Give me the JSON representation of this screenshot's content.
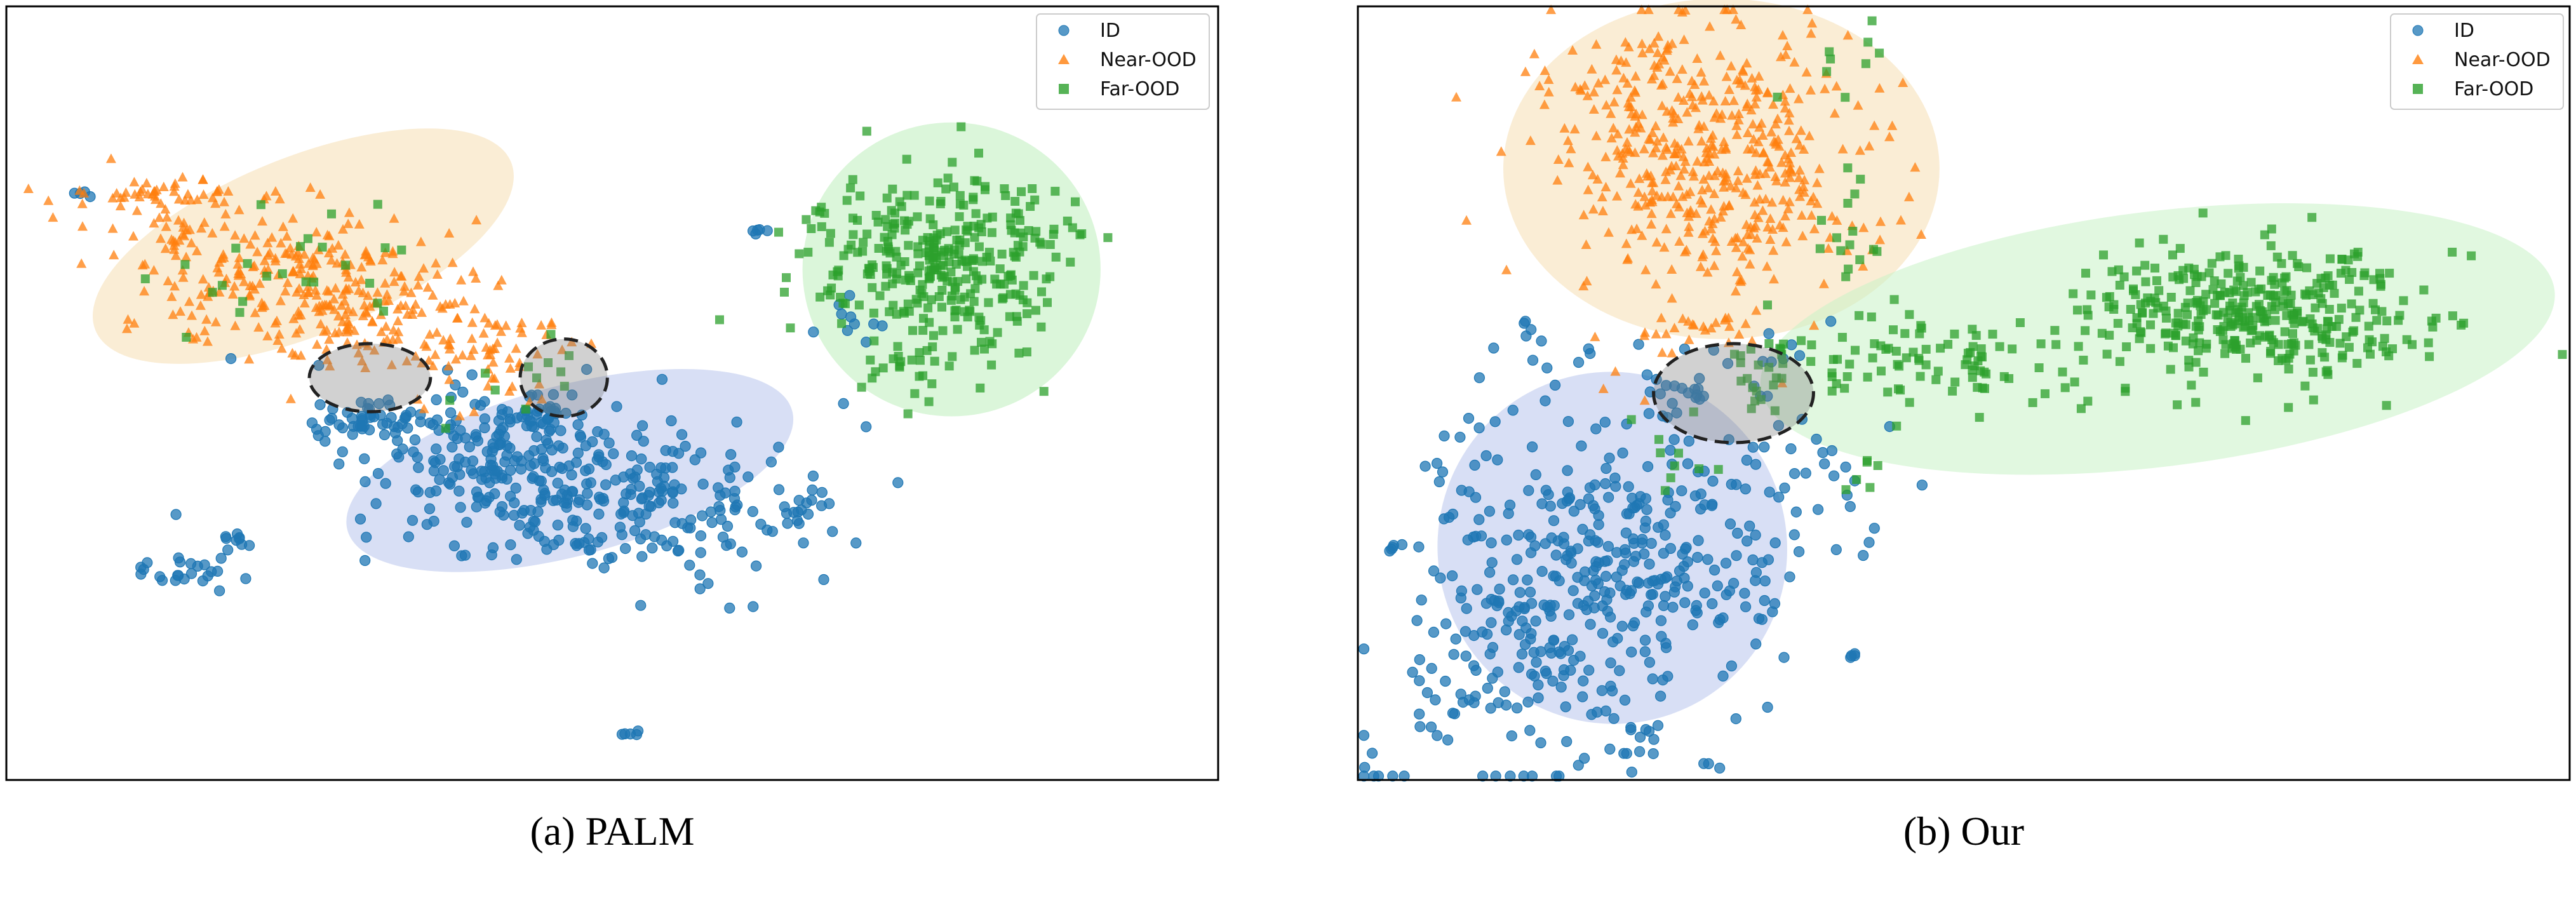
{
  "chart_data": [
    {
      "type": "scatter",
      "title": "",
      "caption": "(a) PALM",
      "xlabel": "",
      "ylabel": "",
      "axes_ticks": "hidden",
      "grid": false,
      "legend_position": "top-right",
      "series": [
        {
          "name": "ID",
          "marker": "circle",
          "color": "#1f77b4",
          "clusters": [
            {
              "center": [
                0.46,
                0.38
              ],
              "spread": [
                0.09,
                0.05
              ],
              "angle": -18,
              "n": 380
            },
            {
              "center": [
                0.3,
                0.47
              ],
              "spread": [
                0.028,
                0.012
              ],
              "angle": 0,
              "n": 45
            },
            {
              "center": [
                0.44,
                0.47
              ],
              "spread": [
                0.022,
                0.014
              ],
              "angle": 0,
              "n": 40
            },
            {
              "center": [
                0.15,
                0.28
              ],
              "spread": [
                0.025,
                0.02
              ],
              "angle": 0,
              "n": 25
            },
            {
              "center": [
                0.66,
                0.35
              ],
              "spread": [
                0.01,
                0.01
              ],
              "angle": 0,
              "n": 10
            },
            {
              "center": [
                0.19,
                0.31
              ],
              "spread": [
                0.006,
                0.006
              ],
              "angle": 0,
              "n": 8
            },
            {
              "center": [
                0.515,
                0.06
              ],
              "spread": [
                0.005,
                0.005
              ],
              "angle": 0,
              "n": 5
            },
            {
              "center": [
                0.06,
                0.76
              ],
              "spread": [
                0.004,
                0.003
              ],
              "angle": 0,
              "n": 4
            },
            {
              "center": [
                0.62,
                0.71
              ],
              "spread": [
                0.006,
                0.005
              ],
              "angle": 0,
              "n": 5
            },
            {
              "center": [
                0.7,
                0.59
              ],
              "spread": [
                0.02,
                0.03
              ],
              "angle": 0,
              "n": 10
            }
          ]
        },
        {
          "name": "Near-OOD",
          "marker": "triangle",
          "color": "#ff7f0e",
          "clusters": [
            {
              "center": [
                0.25,
                0.64
              ],
              "spread": [
                0.09,
                0.045
              ],
              "angle": -25,
              "n": 360
            },
            {
              "center": [
                0.13,
                0.76
              ],
              "spread": [
                0.05,
                0.008
              ],
              "angle": -3,
              "n": 45
            },
            {
              "center": [
                0.4,
                0.55
              ],
              "spread": [
                0.03,
                0.04
              ],
              "angle": 0,
              "n": 40
            }
          ]
        },
        {
          "name": "Far-OOD",
          "marker": "square",
          "color": "#2ca02c",
          "clusters": [
            {
              "center": [
                0.77,
                0.67
              ],
              "spread": [
                0.055,
                0.06
              ],
              "angle": 0,
              "n": 340
            },
            {
              "center": [
                0.74,
                0.54
              ],
              "spread": [
                0.02,
                0.02
              ],
              "angle": 0,
              "n": 20
            },
            {
              "center": [
                0.25,
                0.66
              ],
              "spread": [
                0.08,
                0.06
              ],
              "angle": 0,
              "n": 25
            },
            {
              "center": [
                0.43,
                0.52
              ],
              "spread": [
                0.03,
                0.03
              ],
              "angle": 0,
              "n": 12
            }
          ]
        }
      ],
      "regions": [
        {
          "series": "Near-OOD",
          "color": "#f5deb3",
          "center": [
            0.245,
            0.69
          ],
          "radii": [
            0.185,
            0.115
          ],
          "angle": -22
        },
        {
          "series": "ID",
          "color": "#b8c4ec",
          "center": [
            0.465,
            0.4
          ],
          "radii": [
            0.19,
            0.11
          ],
          "angle": -15
        },
        {
          "series": "Far-OOD",
          "color": "#bdeebc",
          "center": [
            0.78,
            0.66
          ],
          "radii": [
            0.123,
            0.19
          ],
          "angle": 0
        }
      ],
      "overlap_regions": [
        {
          "center": [
            0.3,
            0.52
          ],
          "radii": [
            0.05,
            0.044
          ]
        },
        {
          "center": [
            0.46,
            0.52
          ],
          "radii": [
            0.036,
            0.05
          ]
        }
      ],
      "legend": [
        {
          "label": "ID",
          "marker": "circle",
          "color": "#1f77b4"
        },
        {
          "label": "Near-OOD",
          "marker": "triangle",
          "color": "#ff7f0e"
        },
        {
          "label": "Far-OOD",
          "marker": "square",
          "color": "#2ca02c"
        }
      ],
      "seed": 11
    },
    {
      "type": "scatter",
      "title": "",
      "caption": "(b) Our",
      "xlabel": "",
      "ylabel": "",
      "axes_ticks": "hidden",
      "grid": false,
      "legend_position": "top-right",
      "series": [
        {
          "name": "ID",
          "marker": "circle",
          "color": "#1f77b4",
          "clusters": [
            {
              "center": [
                0.21,
                0.26
              ],
              "spread": [
                0.065,
                0.13
              ],
              "angle": -28,
              "n": 440
            },
            {
              "center": [
                0.03,
                0.3
              ],
              "spread": [
                0.004,
                0.004
              ],
              "angle": 0,
              "n": 5
            },
            {
              "center": [
                0.1,
                0.4
              ],
              "spread": [
                0.03,
                0.07
              ],
              "angle": 0,
              "n": 30
            },
            {
              "center": [
                0.26,
                0.5
              ],
              "spread": [
                0.015,
                0.012
              ],
              "angle": 0,
              "n": 16
            },
            {
              "center": [
                0.23,
                0.05
              ],
              "spread": [
                0.008,
                0.02
              ],
              "angle": 0,
              "n": 10
            },
            {
              "center": [
                0.41,
                0.16
              ],
              "spread": [
                0.005,
                0.005
              ],
              "angle": 0,
              "n": 4
            },
            {
              "center": [
                0.16,
                0.56
              ],
              "spread": [
                0.015,
                0.03
              ],
              "angle": 0,
              "n": 12
            },
            {
              "center": [
                0.4,
                0.36
              ],
              "spread": [
                0.01,
                0.03
              ],
              "angle": 0,
              "n": 8
            },
            {
              "center": [
                0.29,
                0.02
              ],
              "spread": [
                0.004,
                0.004
              ],
              "angle": 0,
              "n": 3
            }
          ]
        },
        {
          "name": "Near-OOD",
          "marker": "triangle",
          "color": "#ff7f0e",
          "clusters": [
            {
              "center": [
                0.3,
                0.79
              ],
              "spread": [
                0.065,
                0.09
              ],
              "angle": 0,
              "n": 430
            },
            {
              "center": [
                0.23,
                0.91
              ],
              "spread": [
                0.03,
                0.05
              ],
              "angle": 0,
              "n": 60
            },
            {
              "center": [
                0.28,
                0.58
              ],
              "spread": [
                0.025,
                0.015
              ],
              "angle": 0,
              "n": 20
            }
          ]
        },
        {
          "name": "Far-OOD",
          "marker": "square",
          "color": "#2ca02c",
          "clusters": [
            {
              "center": [
                0.74,
                0.6
              ],
              "spread": [
                0.07,
                0.045
              ],
              "angle": -8,
              "n": 380
            },
            {
              "center": [
                0.48,
                0.54
              ],
              "spread": [
                0.07,
                0.03
              ],
              "angle": -6,
              "n": 90
            },
            {
              "center": [
                0.33,
                0.53
              ],
              "spread": [
                0.015,
                0.03
              ],
              "angle": 0,
              "n": 20
            },
            {
              "center": [
                0.4,
                0.69
              ],
              "spread": [
                0.02,
                0.06
              ],
              "angle": 0,
              "n": 18
            },
            {
              "center": [
                0.4,
                0.9
              ],
              "spread": [
                0.02,
                0.04
              ],
              "angle": 0,
              "n": 10
            },
            {
              "center": [
                0.26,
                0.4
              ],
              "spread": [
                0.02,
                0.04
              ],
              "angle": 0,
              "n": 10
            },
            {
              "center": [
                0.42,
                0.4
              ],
              "spread": [
                0.01,
                0.02
              ],
              "angle": 0,
              "n": 6
            }
          ]
        }
      ],
      "regions": [
        {
          "series": "Near-OOD",
          "color": "#f5deb3",
          "center": [
            0.3,
            0.79
          ],
          "radii": [
            0.18,
            0.22
          ],
          "angle": 0
        },
        {
          "series": "Far-OOD",
          "color": "#c9f2c7",
          "center": [
            0.66,
            0.57
          ],
          "radii": [
            0.33,
            0.165
          ],
          "angle": -7
        },
        {
          "series": "ID",
          "color": "#b8c4ec",
          "center": [
            0.21,
            0.3
          ],
          "radii": [
            0.144,
            0.228
          ],
          "angle": -25
        }
      ],
      "overlap_regions": [
        {
          "center": [
            0.31,
            0.5
          ],
          "radii": [
            0.066,
            0.064
          ]
        }
      ],
      "legend": [
        {
          "label": "ID",
          "marker": "circle",
          "color": "#1f77b4"
        },
        {
          "label": "Near-OOD",
          "marker": "triangle",
          "color": "#ff7f0e"
        },
        {
          "label": "Far-OOD",
          "marker": "square",
          "color": "#2ca02c"
        }
      ],
      "seed": 29
    }
  ]
}
